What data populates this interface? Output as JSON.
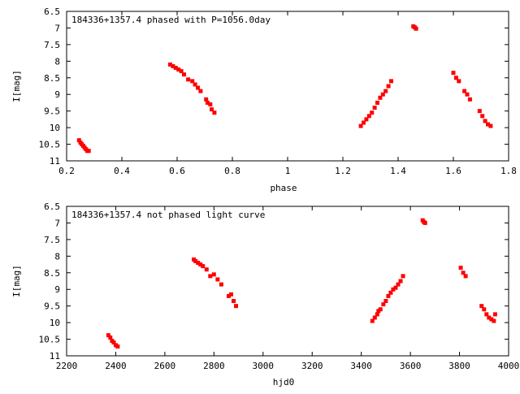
{
  "chart_data": [
    {
      "type": "scatter",
      "title": "184336+1357.4 phased with P=1056.0day",
      "xlabel": "phase",
      "ylabel": "I[mag]",
      "xlim": [
        0.2,
        1.8
      ],
      "ylim": [
        11,
        6.5
      ],
      "y_inverted": true,
      "x_ticks": [
        "0.2",
        "0.4",
        "0.6",
        "0.8",
        "1",
        "1.2",
        "1.4",
        "1.6",
        "1.8"
      ],
      "x_tick_values": [
        0.2,
        0.4,
        0.6,
        0.8,
        1.0,
        1.2,
        1.4,
        1.6,
        1.8
      ],
      "y_ticks": [
        "6.5",
        "7",
        "7.5",
        "8",
        "8.5",
        "9",
        "9.5",
        "10",
        "10.5",
        "11"
      ],
      "y_tick_values": [
        6.5,
        7,
        7.5,
        8,
        8.5,
        9,
        9.5,
        10,
        10.5,
        11
      ],
      "grid": false,
      "marker_color": "#ff0000",
      "x": [
        0.245,
        0.25,
        0.255,
        0.26,
        0.265,
        0.27,
        0.275,
        0.28,
        0.575,
        0.585,
        0.595,
        0.605,
        0.615,
        0.625,
        0.64,
        0.655,
        0.665,
        0.675,
        0.685,
        0.705,
        0.71,
        0.72,
        0.725,
        0.735,
        1.265,
        1.275,
        1.285,
        1.295,
        1.305,
        1.315,
        1.325,
        1.335,
        1.345,
        1.355,
        1.365,
        1.375,
        1.455,
        1.46,
        1.465,
        1.6,
        1.61,
        1.62,
        1.64,
        1.65,
        1.66,
        1.695,
        1.705,
        1.715,
        1.725,
        1.735
      ],
      "y": [
        10.38,
        10.45,
        10.5,
        10.55,
        10.6,
        10.65,
        10.7,
        10.7,
        8.1,
        8.15,
        8.2,
        8.25,
        8.3,
        8.4,
        8.55,
        8.6,
        8.7,
        8.8,
        8.9,
        9.15,
        9.25,
        9.3,
        9.45,
        9.55,
        9.95,
        9.85,
        9.75,
        9.65,
        9.55,
        9.4,
        9.25,
        9.1,
        9.0,
        8.9,
        8.75,
        8.6,
        6.95,
        6.98,
        7.02,
        8.35,
        8.5,
        8.6,
        8.9,
        9.0,
        9.15,
        9.5,
        9.65,
        9.8,
        9.9,
        9.95
      ]
    },
    {
      "type": "scatter",
      "title": "184336+1357.4 not phased light curve",
      "xlabel": "hjd0",
      "ylabel": "I[mag]",
      "xlim": [
        2200,
        4000
      ],
      "ylim": [
        11,
        6.5
      ],
      "y_inverted": true,
      "x_ticks": [
        "2200",
        "2400",
        "2600",
        "2800",
        "3000",
        "3200",
        "3400",
        "3600",
        "3800",
        "4000"
      ],
      "x_tick_values": [
        2200,
        2400,
        2600,
        2800,
        3000,
        3200,
        3400,
        3600,
        3800,
        4000
      ],
      "y_ticks": [
        "6.5",
        "7",
        "7.5",
        "8",
        "8.5",
        "9",
        "9.5",
        "10",
        "10.5",
        "11"
      ],
      "y_tick_values": [
        6.5,
        7,
        7.5,
        8,
        8.5,
        9,
        9.5,
        10,
        10.5,
        11
      ],
      "grid": false,
      "marker_color": "#ff0000",
      "x": [
        2370,
        2378,
        2385,
        2392,
        2400,
        2408,
        2718,
        2725,
        2735,
        2745,
        2755,
        2770,
        2785,
        2800,
        2815,
        2830,
        2860,
        2870,
        2880,
        2890,
        3445,
        3455,
        3465,
        3470,
        3478,
        3490,
        3500,
        3510,
        3520,
        3530,
        3540,
        3550,
        3560,
        3570,
        3650,
        3655,
        3660,
        3805,
        3815,
        3825,
        3890,
        3900,
        3910,
        3920,
        3930,
        3940,
        3945
      ],
      "y": [
        10.38,
        10.45,
        10.55,
        10.6,
        10.68,
        10.72,
        8.1,
        8.15,
        8.2,
        8.25,
        8.3,
        8.4,
        8.6,
        8.55,
        8.7,
        8.85,
        9.2,
        9.15,
        9.35,
        9.5,
        9.95,
        9.85,
        9.75,
        9.65,
        9.6,
        9.45,
        9.35,
        9.2,
        9.1,
        9.0,
        8.95,
        8.85,
        8.75,
        8.6,
        6.92,
        6.97,
        7.0,
        8.35,
        8.5,
        8.6,
        9.5,
        9.6,
        9.75,
        9.85,
        9.9,
        9.95,
        9.75
      ]
    }
  ]
}
